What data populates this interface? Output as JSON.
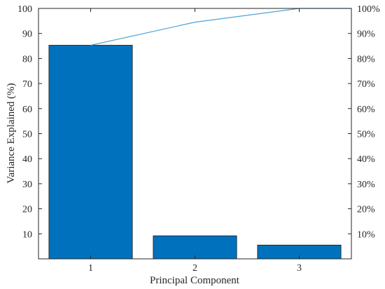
{
  "chart_data": {
    "type": "bar",
    "categories": [
      "1",
      "2",
      "3"
    ],
    "values": [
      85.3,
      9.2,
      5.5
    ],
    "cumulative": [
      85.3,
      94.5,
      100
    ],
    "xlabel": "Principal Component",
    "ylabel": "Variance Explained (%)",
    "ylim": [
      0,
      100
    ],
    "y2lim": [
      0,
      100
    ],
    "yticks": [
      10,
      20,
      30,
      40,
      50,
      60,
      70,
      80,
      90,
      100
    ],
    "y2ticks": [
      "10%",
      "20%",
      "30%",
      "40%",
      "50%",
      "60%",
      "70%",
      "80%",
      "90%",
      "100%"
    ],
    "grid": false,
    "bar_color": "#0072BD",
    "line_color": "#4DA3D6"
  }
}
